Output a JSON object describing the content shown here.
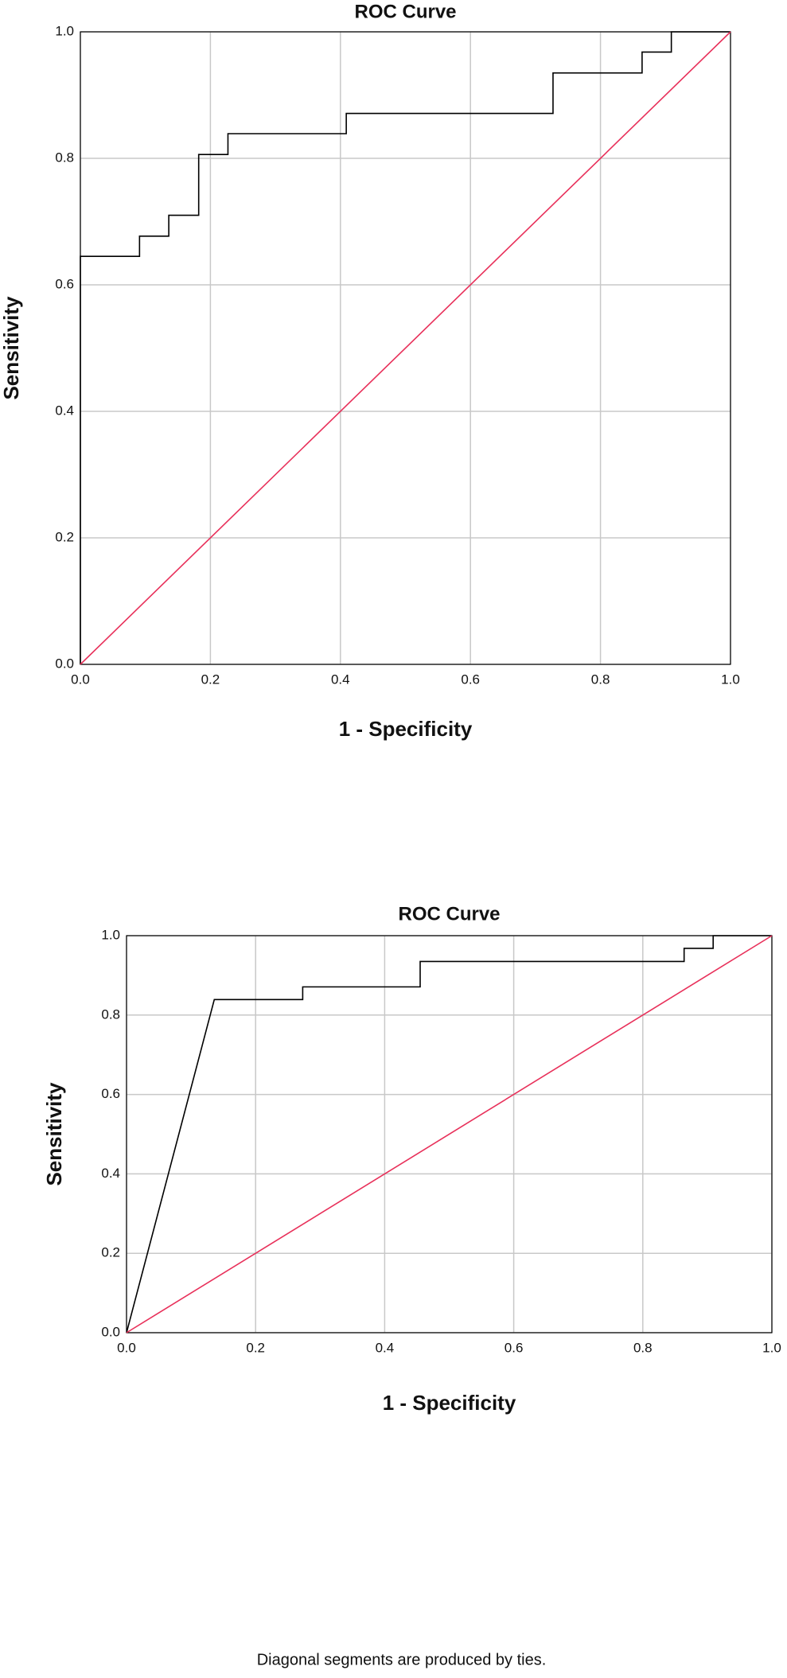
{
  "chart_data": [
    {
      "type": "line",
      "title": "ROC Curve",
      "x_label": "1 - Specificity",
      "y_label": "Sensitivity",
      "xlim": [
        0,
        1
      ],
      "ylim": [
        0,
        1
      ],
      "grid": true,
      "xticks": [
        {
          "value": 0,
          "label": "0.0"
        },
        0.2,
        0.4,
        0.6,
        0.8,
        {
          "value": 1,
          "label": "1.0"
        }
      ],
      "yticks": [
        {
          "value": 0,
          "label": "0.0"
        },
        0.2,
        0.4,
        0.6,
        0.8,
        {
          "value": 1,
          "label": "1.0"
        }
      ],
      "series": [
        {
          "color": "#000000",
          "x": [
            0,
            0,
            0.091,
            0.091,
            0.136,
            0.136,
            0.182,
            0.182,
            0.227,
            0.227,
            0.409,
            0.409,
            0.727,
            0.727,
            0.864,
            0.864,
            0.909,
            0.909,
            1
          ],
          "values": [
            0,
            0.645,
            0.645,
            0.677,
            0.677,
            0.71,
            0.71,
            0.806,
            0.806,
            0.839,
            0.839,
            0.871,
            0.871,
            0.935,
            0.935,
            0.968,
            0.968,
            1,
            1
          ]
        },
        {
          "color": "#e8305a",
          "x": [
            0,
            1
          ],
          "values": [
            0,
            1
          ]
        }
      ]
    },
    {
      "type": "line",
      "title": "ROC Curve",
      "x_label": "1 - Specificity",
      "y_label": "Sensitivity",
      "note": "Diagonal segments are produced by ties.",
      "xlim": [
        0,
        1
      ],
      "ylim": [
        0,
        1
      ],
      "grid": true,
      "xticks": [
        {
          "value": 0,
          "label": "0.0"
        },
        0.2,
        0.4,
        0.6,
        0.8,
        {
          "value": 1,
          "label": "1.0"
        }
      ],
      "yticks": [
        {
          "value": 0,
          "label": "0.0"
        },
        0.2,
        0.4,
        0.6,
        0.8,
        {
          "value": 1,
          "label": "1.0"
        }
      ],
      "series": [
        {
          "color": "#000000",
          "x": [
            0,
            0.136,
            0.273,
            0.273,
            0.455,
            0.455,
            0.864,
            0.864,
            0.909,
            0.909,
            1
          ],
          "values": [
            0,
            0.839,
            0.839,
            0.871,
            0.871,
            0.935,
            0.935,
            0.968,
            0.968,
            1,
            1
          ]
        },
        {
          "color": "#e8305a",
          "x": [
            0,
            1
          ],
          "values": [
            0,
            1
          ]
        }
      ]
    }
  ]
}
